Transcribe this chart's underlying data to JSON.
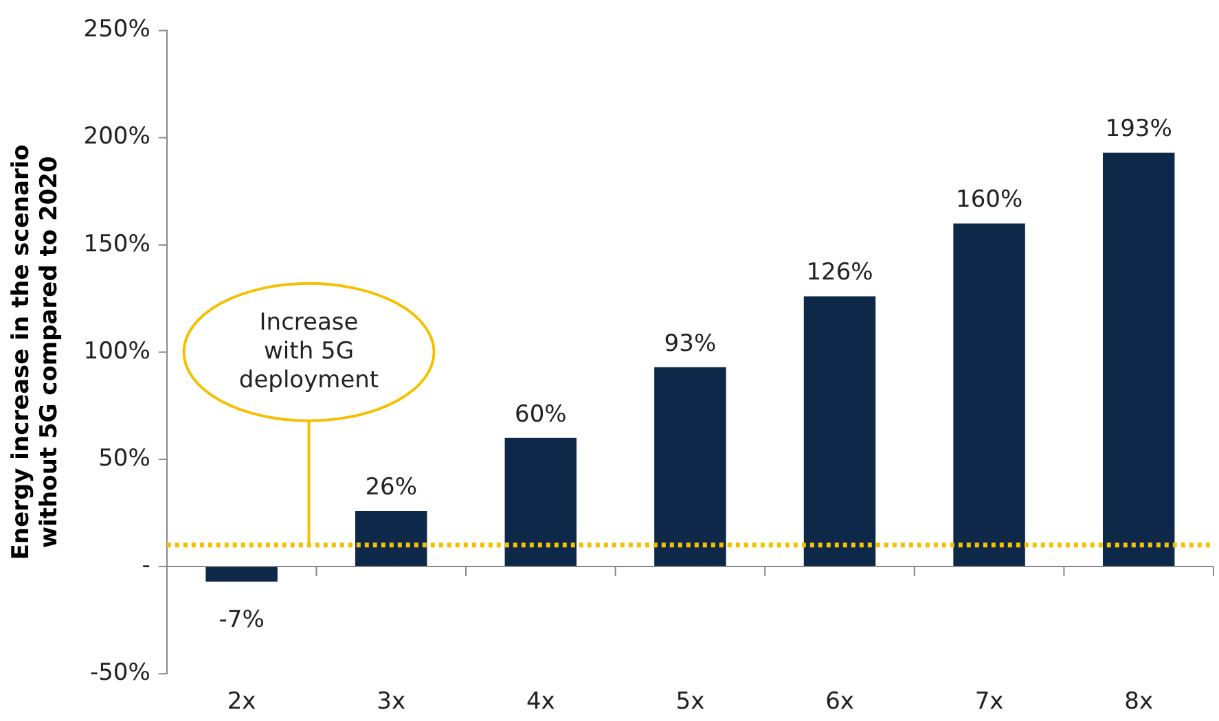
{
  "chart_data": {
    "type": "bar",
    "ylabel": "Energy increase in the scenario without 5G compared to 2020",
    "categories": [
      "2x",
      "3x",
      "4x",
      "5x",
      "6x",
      "7x",
      "8x"
    ],
    "values": [
      -7,
      26,
      60,
      93,
      126,
      160,
      193
    ],
    "color": "#0e2849",
    "value_labels": [
      "-7%",
      "26%",
      "60%",
      "93%",
      "126%",
      "160%",
      "193%"
    ],
    "ylim": [
      -50,
      250
    ],
    "yticks": [
      {
        "value": -50,
        "label": "-50%"
      },
      {
        "value": 0,
        "label": "-"
      },
      {
        "value": 50,
        "label": "50%"
      },
      {
        "value": 100,
        "label": "100%"
      },
      {
        "value": 150,
        "label": "150%"
      },
      {
        "value": 200,
        "label": "200%"
      },
      {
        "value": 250,
        "label": "250%"
      }
    ],
    "grid": false,
    "legend": false,
    "ref_lines": [
      {
        "axis": "y",
        "value": 0,
        "color": "#888888",
        "line_style": "solid"
      },
      {
        "axis": "y",
        "value": 10,
        "label": "Increase with 5G deployment",
        "color": "#f5c000",
        "line_style": "dotted"
      }
    ]
  }
}
